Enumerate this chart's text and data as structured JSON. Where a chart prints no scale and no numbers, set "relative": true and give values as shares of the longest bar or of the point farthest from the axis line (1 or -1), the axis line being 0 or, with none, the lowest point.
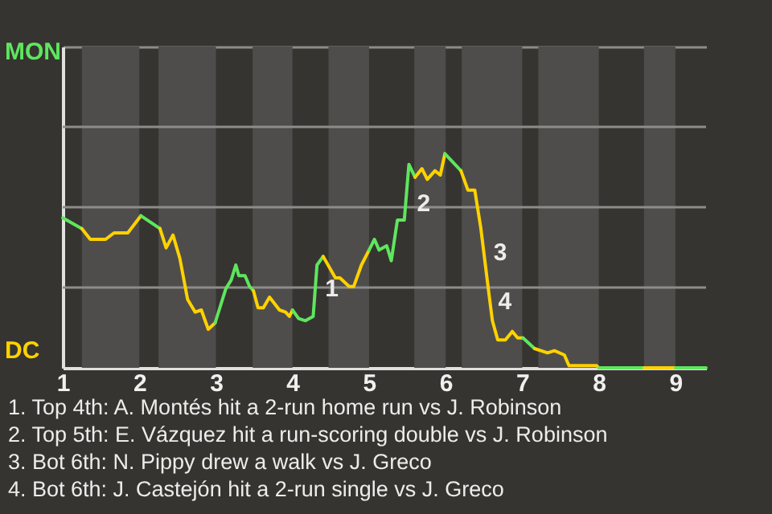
{
  "chart_data": {
    "type": "line",
    "relative": true,
    "line_style": "solid",
    "ref_lines": [
      {
        "axis": "y",
        "value": 0.375,
        "color": "#8e8c8a"
      },
      {
        "axis": "y",
        "value": 0.75,
        "color": "#8e8c8a"
      },
      {
        "axis": "y",
        "value": 1.125,
        "color": "#8e8c8a"
      }
    ],
    "xlim": [
      1,
      9.4
    ],
    "xticks": [
      1,
      2,
      3,
      4,
      5,
      6,
      7,
      8,
      9
    ],
    "bands": [
      {
        "axis": "x",
        "from": 1.25,
        "to": 2,
        "color": "#4f4d4b"
      },
      {
        "axis": "x",
        "from": 2.25,
        "to": 3,
        "color": "#4f4d4b"
      },
      {
        "axis": "x",
        "from": 3.48,
        "to": 4,
        "color": "#4f4d4b"
      },
      {
        "axis": "x",
        "from": 4.47,
        "to": 5,
        "color": "#4f4d4b"
      },
      {
        "axis": "x",
        "from": 5.59,
        "to": 6,
        "color": "#4f4d4b"
      },
      {
        "axis": "x",
        "from": 6.21,
        "to": 7,
        "color": "#4f4d4b"
      },
      {
        "axis": "x",
        "from": 7.21,
        "to": 8,
        "color": "#4f4d4b"
      },
      {
        "axis": "x",
        "from": 8.59,
        "to": 9,
        "color": "#4f4d4b"
      }
    ],
    "series": [
      {
        "color": "#5ee65e",
        "x": [
          1.0,
          1.25
        ],
        "values": [
          0.7,
          0.65
        ]
      },
      {
        "color": "#ffd200",
        "x": [
          1.25,
          1.36,
          1.56,
          1.67,
          1.85,
          2.02
        ],
        "values": [
          0.65,
          0.6,
          0.6,
          0.63,
          0.63,
          0.71
        ]
      },
      {
        "color": "#5ee65e",
        "x": [
          2.02,
          2.27
        ],
        "values": [
          0.71,
          0.65
        ]
      },
      {
        "color": "#ffd200",
        "x": [
          2.27,
          2.35,
          2.44,
          2.53,
          2.63,
          2.73,
          2.81,
          2.9,
          2.99
        ],
        "values": [
          0.65,
          0.56,
          0.62,
          0.51,
          0.32,
          0.26,
          0.27,
          0.18,
          0.21
        ]
      },
      {
        "color": "#5ee65e",
        "x": [
          2.99,
          3.13,
          3.2,
          3.26,
          3.3,
          3.38,
          3.44,
          3.49
        ],
        "values": [
          0.21,
          0.37,
          0.41,
          0.48,
          0.43,
          0.43,
          0.38,
          0.36
        ]
      },
      {
        "color": "#ffd200",
        "x": [
          3.49,
          3.55,
          3.62,
          3.7,
          3.83,
          3.91,
          3.96,
          4.0
        ],
        "values": [
          0.36,
          0.28,
          0.28,
          0.33,
          0.27,
          0.26,
          0.24,
          0.27
        ]
      },
      {
        "color": "#5ee65e",
        "x": [
          4.0,
          4.08,
          4.17,
          4.27,
          4.32,
          4.4
        ],
        "values": [
          0.27,
          0.23,
          0.22,
          0.24,
          0.48,
          0.52
        ]
      },
      {
        "color": "#ffd200",
        "x": [
          4.4,
          4.56,
          4.62,
          4.74,
          4.8,
          4.9,
          5.0
        ],
        "values": [
          0.52,
          0.42,
          0.42,
          0.38,
          0.38,
          0.48,
          0.55
        ]
      },
      {
        "color": "#5ee65e",
        "x": [
          5.0,
          5.07,
          5.13,
          5.23,
          5.29,
          5.37,
          5.46,
          5.52,
          5.6
        ],
        "values": [
          0.55,
          0.6,
          0.55,
          0.57,
          0.5,
          0.69,
          0.69,
          0.95,
          0.89
        ]
      },
      {
        "color": "#ffd200",
        "x": [
          5.6,
          5.69,
          5.76,
          5.86,
          5.93,
          5.99
        ],
        "values": [
          0.89,
          0.93,
          0.88,
          0.92,
          0.9,
          1.0
        ]
      },
      {
        "color": "#5ee65e",
        "x": [
          5.99,
          6.2
        ],
        "values": [
          1.0,
          0.92
        ]
      },
      {
        "color": "#ffd200",
        "x": [
          6.2,
          6.29,
          6.38,
          6.46,
          6.56,
          6.61,
          6.68,
          6.78,
          6.87,
          6.94,
          7.01
        ],
        "values": [
          0.92,
          0.83,
          0.83,
          0.65,
          0.36,
          0.22,
          0.13,
          0.13,
          0.17,
          0.14,
          0.14
        ]
      },
      {
        "color": "#5ee65e",
        "x": [
          7.01,
          7.16
        ],
        "values": [
          0.14,
          0.09
        ]
      },
      {
        "color": "#ffd200",
        "x": [
          7.16,
          7.33,
          7.42,
          7.55,
          7.61,
          7.97,
          8.0
        ],
        "values": [
          0.09,
          0.07,
          0.08,
          0.06,
          0.01,
          0.01,
          0
        ]
      },
      {
        "color": "#5ee65e",
        "x": [
          8.0,
          8.59
        ],
        "values": [
          0,
          0
        ]
      },
      {
        "color": "#ffd200",
        "x": [
          8.59,
          9.0
        ],
        "values": [
          0,
          0
        ]
      },
      {
        "color": "#5ee65e",
        "x": [
          9.0,
          9.4
        ],
        "values": [
          0,
          0
        ]
      }
    ],
    "annotations": [
      "MON",
      "DC",
      {
        "text": "1",
        "x": 4.32,
        "y": 0.37
      },
      {
        "text": "2",
        "x": 5.52,
        "y": 0.77
      },
      {
        "text": "3",
        "x": 6.52,
        "y": 0.54
      },
      {
        "text": "4",
        "x": 6.58,
        "y": 0.31
      },
      "1. Top 4th: A. Montés hit a 2-run home run vs J. Robinson",
      "2. Top 5th: E. Vázquez hit a run-scoring double vs J. Robinson",
      "3. Bot 6th: N. Pippy drew a walk vs J. Greco",
      "4. Bot 6th: J. Castejón hit a 2-run single vs J. Greco"
    ]
  }
}
